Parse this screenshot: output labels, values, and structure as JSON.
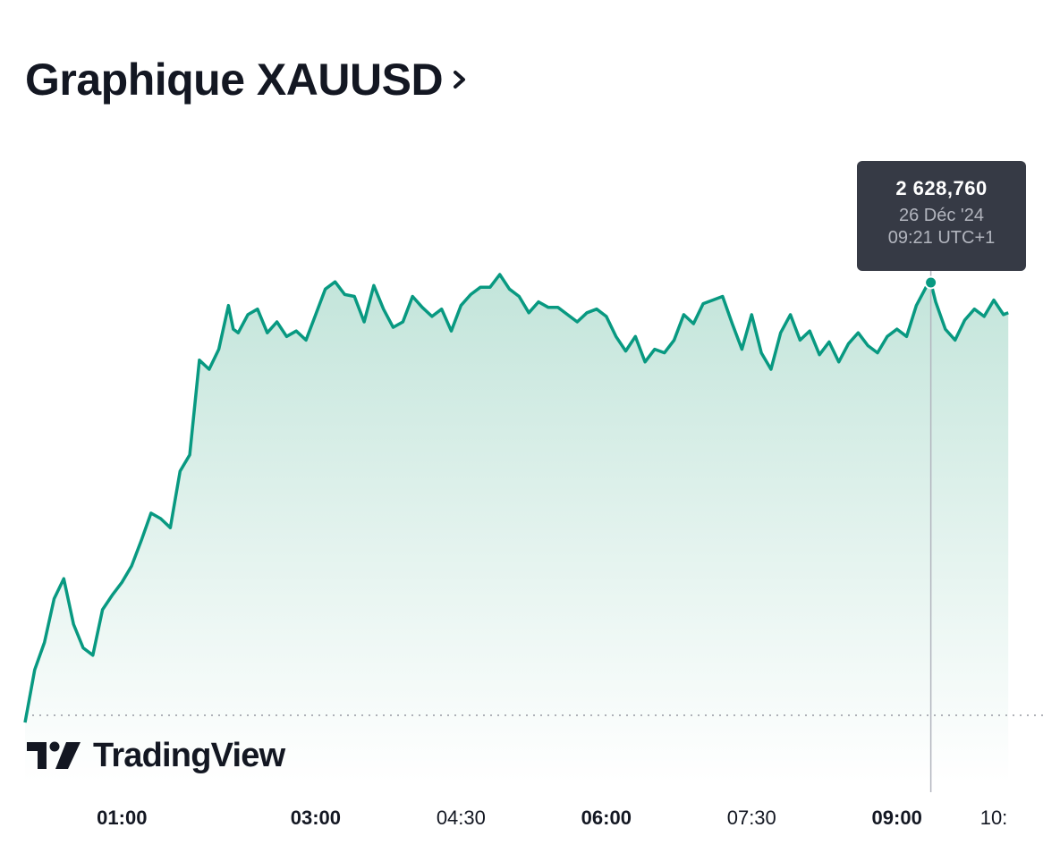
{
  "header": {
    "title": "Graphique XAUUSD",
    "chevron_icon": "chevron-right-icon"
  },
  "tooltip": {
    "value": "2 628,760",
    "date": "26 Déc '24",
    "time": "09:21 UTC+1"
  },
  "branding": {
    "logo_text": "TradingView",
    "logo_icon": "tradingview-logo-icon"
  },
  "colors": {
    "line": "#089981",
    "fill_top": "#bfe3d8",
    "tooltip_bg": "#363a45"
  },
  "chart_data": {
    "type": "area",
    "title": "Graphique XAUUSD",
    "xlabel": "",
    "ylabel": "",
    "grid": false,
    "x_ticks": [
      {
        "label": "01:00",
        "x": 1.0,
        "bold": true
      },
      {
        "label": "03:00",
        "x": 3.0,
        "bold": true
      },
      {
        "label": "04:30",
        "x": 4.5,
        "bold": false
      },
      {
        "label": "06:00",
        "x": 6.0,
        "bold": true
      },
      {
        "label": "07:30",
        "x": 7.5,
        "bold": false
      },
      {
        "label": "09:00",
        "x": 9.0,
        "bold": true
      },
      {
        "label": "10:",
        "x": 10.0,
        "bold": false
      }
    ],
    "x_range": [
      0.0,
      10.15
    ],
    "y_range": [
      2601.0,
      2631.0
    ],
    "baseline": 2605.0,
    "highlight": {
      "x": 9.35,
      "y": 2628.76
    },
    "series": [
      {
        "x": [
          0.0,
          0.1,
          0.2,
          0.3,
          0.4,
          0.5,
          0.6,
          0.7,
          0.8,
          0.9,
          1.0,
          1.1,
          1.2,
          1.3,
          1.4,
          1.5,
          1.6,
          1.7,
          1.8,
          1.9,
          2.0,
          2.1,
          2.15,
          2.2,
          2.3,
          2.4,
          2.5,
          2.6,
          2.7,
          2.8,
          2.9,
          3.0,
          3.1,
          3.2,
          3.3,
          3.4,
          3.5,
          3.6,
          3.7,
          3.8,
          3.9,
          4.0,
          4.1,
          4.2,
          4.3,
          4.4,
          4.5,
          4.6,
          4.7,
          4.8,
          4.9,
          5.0,
          5.1,
          5.2,
          5.3,
          5.4,
          5.5,
          5.6,
          5.7,
          5.8,
          5.9,
          6.0,
          6.1,
          6.2,
          6.3,
          6.4,
          6.5,
          6.6,
          6.7,
          6.8,
          6.9,
          7.0,
          7.1,
          7.2,
          7.3,
          7.4,
          7.5,
          7.6,
          7.7,
          7.8,
          7.9,
          8.0,
          8.1,
          8.2,
          8.3,
          8.4,
          8.5,
          8.6,
          8.7,
          8.8,
          8.9,
          9.0,
          9.1,
          9.2,
          9.3,
          9.35,
          9.4,
          9.5,
          9.6,
          9.7,
          9.8,
          9.9,
          10.0,
          10.1,
          10.15
        ],
        "y": [
          2604.6,
          2607.5,
          2609.0,
          2611.4,
          2612.5,
          2610.0,
          2608.7,
          2608.3,
          2610.8,
          2611.6,
          2612.3,
          2613.2,
          2614.6,
          2616.1,
          2615.8,
          2615.3,
          2618.4,
          2619.3,
          2624.5,
          2624.0,
          2625.1,
          2627.5,
          2626.2,
          2626.0,
          2627.0,
          2627.3,
          2626.0,
          2626.6,
          2625.8,
          2626.1,
          2625.6,
          2627.0,
          2628.4,
          2628.8,
          2628.1,
          2628.0,
          2626.6,
          2628.6,
          2627.3,
          2626.3,
          2626.6,
          2628.0,
          2627.4,
          2626.9,
          2627.3,
          2626.1,
          2627.5,
          2628.1,
          2628.5,
          2628.5,
          2629.2,
          2628.4,
          2628.0,
          2627.1,
          2627.7,
          2627.4,
          2627.4,
          2627.0,
          2626.6,
          2627.1,
          2627.3,
          2626.9,
          2625.8,
          2625.0,
          2625.8,
          2624.4,
          2625.1,
          2624.9,
          2625.6,
          2627.0,
          2626.5,
          2627.6,
          2627.8,
          2628.0,
          2626.5,
          2625.1,
          2627.0,
          2624.9,
          2624.0,
          2626.0,
          2627.0,
          2625.6,
          2626.1,
          2624.8,
          2625.5,
          2624.4,
          2625.4,
          2626.0,
          2625.3,
          2624.9,
          2625.8,
          2626.2,
          2625.8,
          2627.5,
          2628.5,
          2628.76,
          2627.7,
          2626.2,
          2625.6,
          2626.7,
          2627.3,
          2626.9,
          2627.8,
          2627.0,
          2627.1
        ]
      }
    ]
  }
}
